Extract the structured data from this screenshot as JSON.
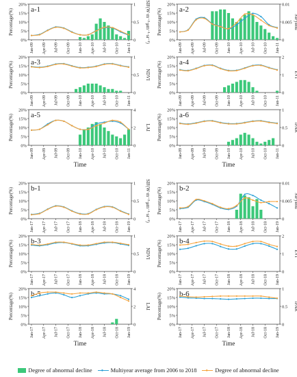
{
  "colors": {
    "bar": "#3cc87a",
    "multiyear": "#2a9fd6",
    "decline": "#f5a33c"
  },
  "legend": {
    "bar_label": "Degree of abnormal decline",
    "multiyear_label": "Multiyear average from 2006 to 2018",
    "decline_label": "Degree of abnormal decline"
  },
  "chart_data": [
    {
      "panel": "a-1",
      "type": "bar+line",
      "ylabel_left": "Percentage(%)",
      "ylabel_right": "SIF(W·m⁻²·μm⁻¹·sr⁻¹)",
      "xlabel": "",
      "ylim_left": [
        0,
        20
      ],
      "yticks_left": [
        "0%",
        "5%",
        "10%",
        "15%",
        "20%"
      ],
      "ylim_right": [
        0,
        1
      ],
      "yticks_right": [
        "0",
        "0.5",
        "1"
      ],
      "xticks": [
        "Jan-09",
        "Apr-09",
        "Jul-09",
        "Oct-09",
        "Jan-10",
        "Apr-10",
        "Jul-10",
        "Oct-10",
        "Jan-11"
      ],
      "bars": [
        0,
        0,
        0,
        0,
        0,
        0,
        0,
        0,
        0,
        0,
        0,
        0,
        1.5,
        1,
        2,
        3,
        9,
        12,
        10,
        8,
        7,
        3,
        2,
        1,
        5
      ],
      "series": [
        {
          "values": [
            0.12,
            0.15,
            0.27,
            0.36,
            0.33,
            0.22,
            0.14,
            0.14,
            0.26,
            0.34,
            0.33,
            0.22,
            0.13
          ]
        },
        {
          "values": [
            0.12,
            0.14,
            0.26,
            0.35,
            0.32,
            0.21,
            0.14,
            0.14,
            0.25,
            0.35,
            0.34,
            0.24,
            0.14
          ]
        }
      ]
    },
    {
      "panel": "a-2",
      "type": "bar+line",
      "ylabel_left": "Percentage(%)",
      "ylabel_right": "SIFyield",
      "xlabel": "",
      "ylim_left": [
        0,
        20
      ],
      "yticks_left": [
        "0%",
        "5%",
        "10%",
        "15%",
        "20%"
      ],
      "ylim_right": [
        0,
        0.01
      ],
      "yticks_right": [
        "0",
        "0.005",
        "0.01"
      ],
      "xticks": [
        "Jan-09",
        "Apr-09",
        "Jul-09",
        "Oct-09",
        "Jan-10",
        "Apr-10",
        "Jul-10",
        "Oct-10",
        "Jan-11"
      ],
      "bars": [
        0,
        0,
        0,
        0,
        0,
        0,
        0,
        0,
        16,
        16,
        17,
        17,
        15,
        12,
        10,
        12,
        14,
        16,
        14,
        10,
        8,
        6,
        4,
        2,
        1
      ],
      "series": [
        {
          "values": [
            0.0022,
            0.0028,
            0.0058,
            0.0062,
            0.0045,
            0.0038,
            0.003,
            0.0042,
            0.006,
            0.0074,
            0.0065,
            0.0042,
            0.0034
          ]
        },
        {
          "values": [
            0.0022,
            0.0027,
            0.0056,
            0.006,
            0.0044,
            0.0037,
            0.0031,
            0.0048,
            0.0072,
            0.007,
            0.0055,
            0.004,
            0.0033
          ]
        }
      ]
    },
    {
      "panel": "a-3",
      "type": "bar+line",
      "ylabel_left": "Percentage(%)",
      "ylabel_right": "NDVI",
      "xlabel": "",
      "ylim_left": [
        0,
        20
      ],
      "yticks_left": [
        "0%",
        "5%",
        "10%",
        "15%",
        "20%"
      ],
      "ylim_right": [
        0,
        1
      ],
      "yticks_right": [
        "0",
        "0.5",
        "1"
      ],
      "xticks": [
        "Jan-09",
        "Apr-09",
        "Jul-09",
        "Oct-09",
        "Jan-10",
        "Apr-10",
        "Jul-10",
        "Oct-10",
        "Jan-11"
      ],
      "bars": [
        0,
        0,
        0,
        0,
        0,
        0,
        0,
        0,
        0,
        0,
        0,
        2,
        3,
        4,
        5,
        5,
        5,
        4,
        3,
        2,
        2,
        1,
        1,
        0,
        0
      ],
      "series": [
        {
          "values": [
            0.73,
            0.71,
            0.74,
            0.8,
            0.81,
            0.75,
            0.7,
            0.71,
            0.74,
            0.8,
            0.81,
            0.76,
            0.72
          ]
        },
        {
          "values": [
            0.72,
            0.7,
            0.73,
            0.79,
            0.8,
            0.74,
            0.69,
            0.7,
            0.73,
            0.79,
            0.8,
            0.75,
            0.71
          ]
        }
      ]
    },
    {
      "panel": "a-4",
      "type": "bar+line",
      "ylabel_left": "Percentage(%)",
      "ylabel_right": "EVI",
      "xlabel": "",
      "ylim_left": [
        0,
        20
      ],
      "yticks_left": [
        "0%",
        "5%",
        "10%",
        "15%",
        "20%"
      ],
      "ylim_right": [
        0,
        2
      ],
      "yticks_right": [
        "0",
        "1",
        "2"
      ],
      "xticks": [
        "Jan-09",
        "Apr-09",
        "Jul-09",
        "Oct-09",
        "Jan-10",
        "Apr-10",
        "Jul-10",
        "Oct-10",
        "Jan-11"
      ],
      "bars": [
        0,
        0,
        0,
        0,
        0,
        0,
        0,
        0,
        0,
        0,
        0,
        3,
        4,
        5,
        6,
        7,
        7,
        6,
        3,
        1,
        0,
        0,
        0,
        0,
        1
      ],
      "series": [
        {
          "values": [
            1.28,
            1.24,
            1.36,
            1.52,
            1.54,
            1.36,
            1.24,
            1.25,
            1.38,
            1.52,
            1.54,
            1.4,
            1.28
          ]
        },
        {
          "values": [
            1.26,
            1.22,
            1.34,
            1.5,
            1.52,
            1.34,
            1.22,
            1.23,
            1.36,
            1.5,
            1.52,
            1.38,
            1.26
          ]
        }
      ]
    },
    {
      "panel": "a-5",
      "type": "bar+line",
      "ylabel_left": "Percentage(%)",
      "ylabel_right": "LAI",
      "xlabel": "Time",
      "ylim_left": [
        0,
        20
      ],
      "yticks_left": [
        "0%",
        "5%",
        "10%",
        "15%",
        "20%"
      ],
      "ylim_right": [
        0,
        4
      ],
      "yticks_right": [
        "0",
        "2",
        "4"
      ],
      "xticks": [
        "Jan-09",
        "Apr-09",
        "Jul-09",
        "Oct-09",
        "Jan-10",
        "Apr-10",
        "Jul-10",
        "Oct-10",
        "Jan-11"
      ],
      "bars": [
        0,
        0,
        0,
        0,
        0,
        0,
        0,
        0,
        0,
        0,
        0,
        0,
        6,
        9,
        10,
        12,
        13,
        12,
        10,
        8,
        6,
        5,
        4,
        6,
        9
      ],
      "series": [
        {
          "values": [
            1.7,
            1.8,
            2.4,
            2.8,
            2.7,
            2.2,
            1.8,
            1.8,
            2.4,
            2.6,
            2.7,
            2.5,
            1.8
          ]
        },
        {
          "values": [
            1.7,
            1.8,
            2.3,
            2.8,
            2.7,
            2.2,
            1.8,
            1.8,
            2.2,
            2.5,
            2.8,
            2.6,
            1.8
          ]
        }
      ]
    },
    {
      "panel": "a-6",
      "type": "bar+line",
      "ylabel_left": "Percentage(%)",
      "ylabel_right": "fPAR",
      "xlabel": "Time",
      "ylim_left": [
        0,
        20
      ],
      "yticks_left": [
        "0%",
        "5%",
        "10%",
        "15%",
        "20%"
      ],
      "ylim_right": [
        0,
        1
      ],
      "yticks_right": [
        "0",
        "0.5",
        "1"
      ],
      "xticks": [
        "Jan-09",
        "Apr-09",
        "Jul-09",
        "Oct-09",
        "Jan-10",
        "Apr-10",
        "Jul-10",
        "Oct-10",
        "Jan-11"
      ],
      "bars": [
        0,
        0,
        0,
        0,
        0,
        0,
        0,
        0,
        0,
        0,
        0,
        0,
        2,
        3,
        4,
        6,
        7,
        6,
        4,
        2,
        1,
        2,
        3,
        4,
        0
      ],
      "series": [
        {
          "values": [
            0.62,
            0.6,
            0.63,
            0.68,
            0.69,
            0.64,
            0.61,
            0.61,
            0.64,
            0.68,
            0.69,
            0.65,
            0.62
          ]
        },
        {
          "values": [
            0.61,
            0.59,
            0.62,
            0.67,
            0.68,
            0.63,
            0.6,
            0.6,
            0.63,
            0.67,
            0.68,
            0.64,
            0.61
          ]
        }
      ]
    },
    {
      "panel": "b-1",
      "type": "bar+line",
      "ylabel_left": "Percentage(%)",
      "ylabel_right": "SIF(W·m⁻²·μm⁻¹·sr⁻¹)",
      "xlabel": "",
      "ylim_left": [
        0,
        20
      ],
      "yticks_left": [
        "0%",
        "5%",
        "10%",
        "15%",
        "20%"
      ],
      "ylim_right": [
        0,
        1
      ],
      "yticks_right": [
        "0",
        "0.5",
        "1"
      ],
      "xticks": [
        "Jan-17",
        "Apr-17",
        "Jul-17",
        "Oct-17",
        "Jan-18",
        "Apr-18",
        "Jul-18",
        "Oct-18",
        "Jan-19"
      ],
      "bars": [
        0,
        0,
        0,
        0,
        0,
        0,
        0,
        0,
        0,
        0,
        0,
        0,
        0,
        0,
        0,
        0,
        0,
        0,
        0,
        0,
        0,
        0,
        0,
        0,
        0
      ],
      "series": [
        {
          "values": [
            0.12,
            0.15,
            0.27,
            0.36,
            0.33,
            0.22,
            0.14,
            0.14,
            0.26,
            0.34,
            0.33,
            0.22,
            0.13
          ]
        },
        {
          "values": [
            0.11,
            0.14,
            0.26,
            0.35,
            0.32,
            0.21,
            0.13,
            0.13,
            0.25,
            0.33,
            0.32,
            0.21,
            0.12
          ]
        }
      ]
    },
    {
      "panel": "b-2",
      "type": "bar+line",
      "ylabel_left": "Percentage(%)",
      "ylabel_right": "SIFyield",
      "xlabel": "",
      "ylim_left": [
        0,
        20
      ],
      "yticks_left": [
        "0%",
        "5%",
        "10%",
        "15%",
        "20%"
      ],
      "ylim_right": [
        0,
        0.01
      ],
      "yticks_right": [
        "0",
        "0.005",
        "0.01"
      ],
      "xticks": [
        "Jan-17",
        "Apr-17",
        "Jul-17",
        "Oct-17",
        "Jan-18",
        "Apr-18",
        "Jul-18",
        "Oct-18",
        "Jan-19"
      ],
      "bars": [
        0,
        0,
        0,
        0,
        0,
        0,
        0,
        0,
        0,
        0,
        0,
        0,
        0,
        0,
        5,
        14,
        13,
        12,
        7,
        11,
        5,
        0,
        0,
        0,
        0
      ],
      "series": [
        {
          "values": [
            0.0028,
            0.0032,
            0.0052,
            0.0048,
            0.004,
            0.003,
            0.0026,
            0.0035,
            0.0068,
            0.0065,
            0.0052,
            0.0042,
            0.003
          ]
        },
        {
          "values": [
            0.003,
            0.0034,
            0.0054,
            0.005,
            0.0042,
            0.0032,
            0.0028,
            0.0037,
            0.0058,
            0.0052,
            0.0045,
            0.0048,
            0.0048
          ]
        }
      ]
    },
    {
      "panel": "b-3",
      "type": "bar+line",
      "ylabel_left": "Percentage(%)",
      "ylabel_right": "NDVI",
      "xlabel": "",
      "ylim_left": [
        0,
        20
      ],
      "yticks_left": [
        "0%",
        "5%",
        "10%",
        "15%",
        "20%"
      ],
      "ylim_right": [
        0,
        1
      ],
      "yticks_right": [
        "0",
        "0.5",
        "1"
      ],
      "xticks": [
        "Jan-17",
        "Apr-17",
        "Jul-17",
        "Oct-17",
        "Jan-18",
        "Apr-18",
        "Jul-18",
        "Oct-18",
        "Jan-19"
      ],
      "bars": [
        0,
        0,
        0,
        0,
        0,
        0,
        0,
        0,
        0,
        0,
        0,
        0,
        0,
        0,
        0,
        0,
        0,
        0,
        0,
        0,
        0,
        0,
        0,
        0,
        0
      ],
      "series": [
        {
          "values": [
            0.74,
            0.72,
            0.75,
            0.8,
            0.81,
            0.77,
            0.72,
            0.72,
            0.76,
            0.8,
            0.81,
            0.77,
            0.73
          ]
        },
        {
          "values": [
            0.76,
            0.74,
            0.77,
            0.82,
            0.82,
            0.78,
            0.74,
            0.74,
            0.78,
            0.82,
            0.82,
            0.79,
            0.75
          ]
        }
      ]
    },
    {
      "panel": "b-4",
      "type": "bar+line",
      "ylabel_left": "Percentage(%)",
      "ylabel_right": "EVI",
      "xlabel": "",
      "ylim_left": [
        0,
        20
      ],
      "yticks_left": [
        "0%",
        "5%",
        "10%",
        "15%",
        "20%"
      ],
      "ylim_right": [
        0,
        2
      ],
      "yticks_right": [
        "0",
        "1",
        "2"
      ],
      "xticks": [
        "Jan-17",
        "Apr-17",
        "Jul-17",
        "Oct-17",
        "Jan-18",
        "Apr-18",
        "Jul-18",
        "Oct-18",
        "Jan-19"
      ],
      "bars": [
        0,
        0,
        0,
        0,
        0,
        0,
        0,
        0,
        0,
        0,
        0,
        0,
        0,
        0,
        0,
        0,
        0,
        0,
        0,
        0,
        0,
        0,
        0,
        0,
        0
      ],
      "series": [
        {
          "values": [
            1.24,
            1.3,
            1.44,
            1.56,
            1.56,
            1.4,
            1.26,
            1.26,
            1.42,
            1.56,
            1.56,
            1.42,
            1.24
          ]
        },
        {
          "values": [
            1.48,
            1.52,
            1.62,
            1.7,
            1.68,
            1.54,
            1.42,
            1.42,
            1.56,
            1.68,
            1.68,
            1.52,
            1.4
          ]
        }
      ]
    },
    {
      "panel": "b-5",
      "type": "bar+line",
      "ylabel_left": "Percentage(%)",
      "ylabel_right": "LAI",
      "xlabel": "Time",
      "ylim_left": [
        0,
        20
      ],
      "yticks_left": [
        "0%",
        "5%",
        "10%",
        "15%",
        "20%"
      ],
      "ylim_right": [
        0,
        4
      ],
      "yticks_right": [
        "0",
        "2",
        "4"
      ],
      "xticks": [
        "Jan-17",
        "Apr-17",
        "Jul-17",
        "Oct-17",
        "Jan-18",
        "Apr-18",
        "Jul-18",
        "Oct-18",
        "Jan-19"
      ],
      "bars": [
        0,
        0,
        0,
        0,
        0,
        0,
        0,
        0,
        0,
        0,
        0,
        0,
        0,
        0,
        0,
        0,
        0,
        0,
        0,
        0,
        1,
        3,
        0,
        0,
        0
      ],
      "series": [
        {
          "values": [
            3.0,
            3.2,
            3.4,
            3.5,
            3.3,
            3.0,
            3.2,
            3.4,
            3.5,
            3.4,
            3.4,
            3.2,
            2.8
          ]
        },
        {
          "values": [
            3.2,
            3.5,
            3.6,
            3.6,
            3.5,
            3.4,
            3.5,
            3.5,
            3.6,
            3.5,
            3.4,
            3.0,
            2.6
          ]
        }
      ]
    },
    {
      "panel": "b-6",
      "type": "bar+line",
      "ylabel_left": "Percentage(%)",
      "ylabel_right": "fPAR",
      "xlabel": "Time",
      "ylim_left": [
        0,
        20
      ],
      "yticks_left": [
        "0%",
        "5%",
        "10%",
        "15%",
        "20%"
      ],
      "ylim_right": [
        0,
        1
      ],
      "yticks_right": [
        "0",
        "0.5",
        "1"
      ],
      "xticks": [
        "Jan-17",
        "Apr-17",
        "Jul-17",
        "Oct-17",
        "Jan-18",
        "Apr-18",
        "Jul-18",
        "Oct-18",
        "Jan-19"
      ],
      "bars": [
        0,
        0,
        0,
        0,
        0,
        0,
        0,
        0,
        0,
        0,
        0,
        0,
        0,
        0,
        0,
        0,
        0,
        0,
        0,
        0,
        0,
        0,
        0,
        0,
        0
      ],
      "series": [
        {
          "values": [
            0.76,
            0.74,
            0.73,
            0.72,
            0.72,
            0.71,
            0.7,
            0.71,
            0.72,
            0.73,
            0.73,
            0.72,
            0.72
          ]
        },
        {
          "values": [
            0.79,
            0.77,
            0.76,
            0.77,
            0.78,
            0.79,
            0.79,
            0.79,
            0.79,
            0.79,
            0.79,
            0.76,
            0.73
          ]
        }
      ]
    }
  ]
}
